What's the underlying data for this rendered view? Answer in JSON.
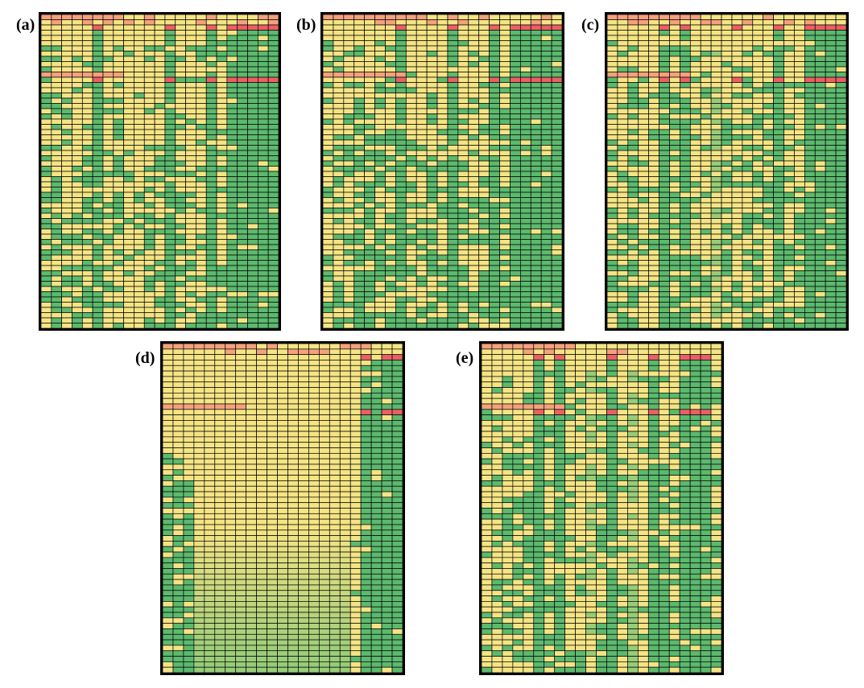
{
  "figure": {
    "colors": {
      "yellow": "#f5e484",
      "green": "#5cb96e",
      "light_green": "#97cc78",
      "red": "#ec5e66",
      "pink": "#f4a17d",
      "grid_line": "#000000"
    }
  },
  "chart_data": [
    {
      "type": "heatmap",
      "label": "(a)",
      "rows": 60,
      "cols": 23,
      "green_columns": [
        5,
        12,
        16,
        18,
        19,
        20,
        21,
        22
      ],
      "light_green_columns": [],
      "red_rows": [
        2,
        12
      ],
      "red_columns": [
        5,
        12,
        16,
        18,
        19,
        20,
        21,
        22
      ],
      "pink_band_rows": [
        0,
        11
      ],
      "fill_start_row": 5,
      "fill_base": 0.15,
      "fill_slope": 0.55
    },
    {
      "type": "heatmap",
      "label": "(b)",
      "rows": 60,
      "cols": 23,
      "green_columns": [
        7,
        12,
        16,
        18,
        19,
        20,
        21,
        22
      ],
      "light_green_columns": [
        7
      ],
      "red_rows": [
        2,
        12
      ],
      "red_columns": [
        7,
        12,
        16,
        18,
        19,
        20,
        21,
        22
      ],
      "pink_band_rows": [
        0,
        11
      ],
      "fill_start_row": 5,
      "fill_base": 0.2,
      "fill_slope": 0.55
    },
    {
      "type": "heatmap",
      "label": "(c)",
      "rows": 60,
      "cols": 23,
      "green_columns": [
        5,
        7,
        16,
        19,
        20,
        21,
        22
      ],
      "light_green_columns": [
        10
      ],
      "red_rows": [
        2,
        12
      ],
      "red_columns": [
        5,
        7,
        12,
        16,
        19,
        20,
        21,
        22
      ],
      "pink_band_rows": [
        0,
        11
      ],
      "fill_start_row": 5,
      "fill_base": 0.25,
      "fill_slope": 0.6
    },
    {
      "type": "heatmap",
      "label": "(d)",
      "rows": 60,
      "cols": 23,
      "green_columns": [
        19,
        20,
        21,
        22
      ],
      "light_green_columns": [],
      "red_rows": [
        2,
        12
      ],
      "red_columns": [
        19,
        21,
        22
      ],
      "pink_band_rows": [
        0,
        11
      ],
      "fill_start_row": 20,
      "fill_base": 0.0,
      "fill_slope": 0.35,
      "gradient_bottom": true
    },
    {
      "type": "heatmap",
      "label": "(e)",
      "rows": 60,
      "cols": 23,
      "green_columns": [
        5,
        7,
        12,
        16,
        19,
        20,
        21
      ],
      "light_green_columns": [
        10,
        14
      ],
      "red_rows": [
        2,
        12
      ],
      "red_columns": [
        5,
        7,
        12,
        16,
        19,
        20,
        21
      ],
      "pink_band_rows": [
        0,
        11
      ],
      "fill_start_row": 5,
      "fill_base": 0.2,
      "fill_slope": 0.55
    }
  ]
}
